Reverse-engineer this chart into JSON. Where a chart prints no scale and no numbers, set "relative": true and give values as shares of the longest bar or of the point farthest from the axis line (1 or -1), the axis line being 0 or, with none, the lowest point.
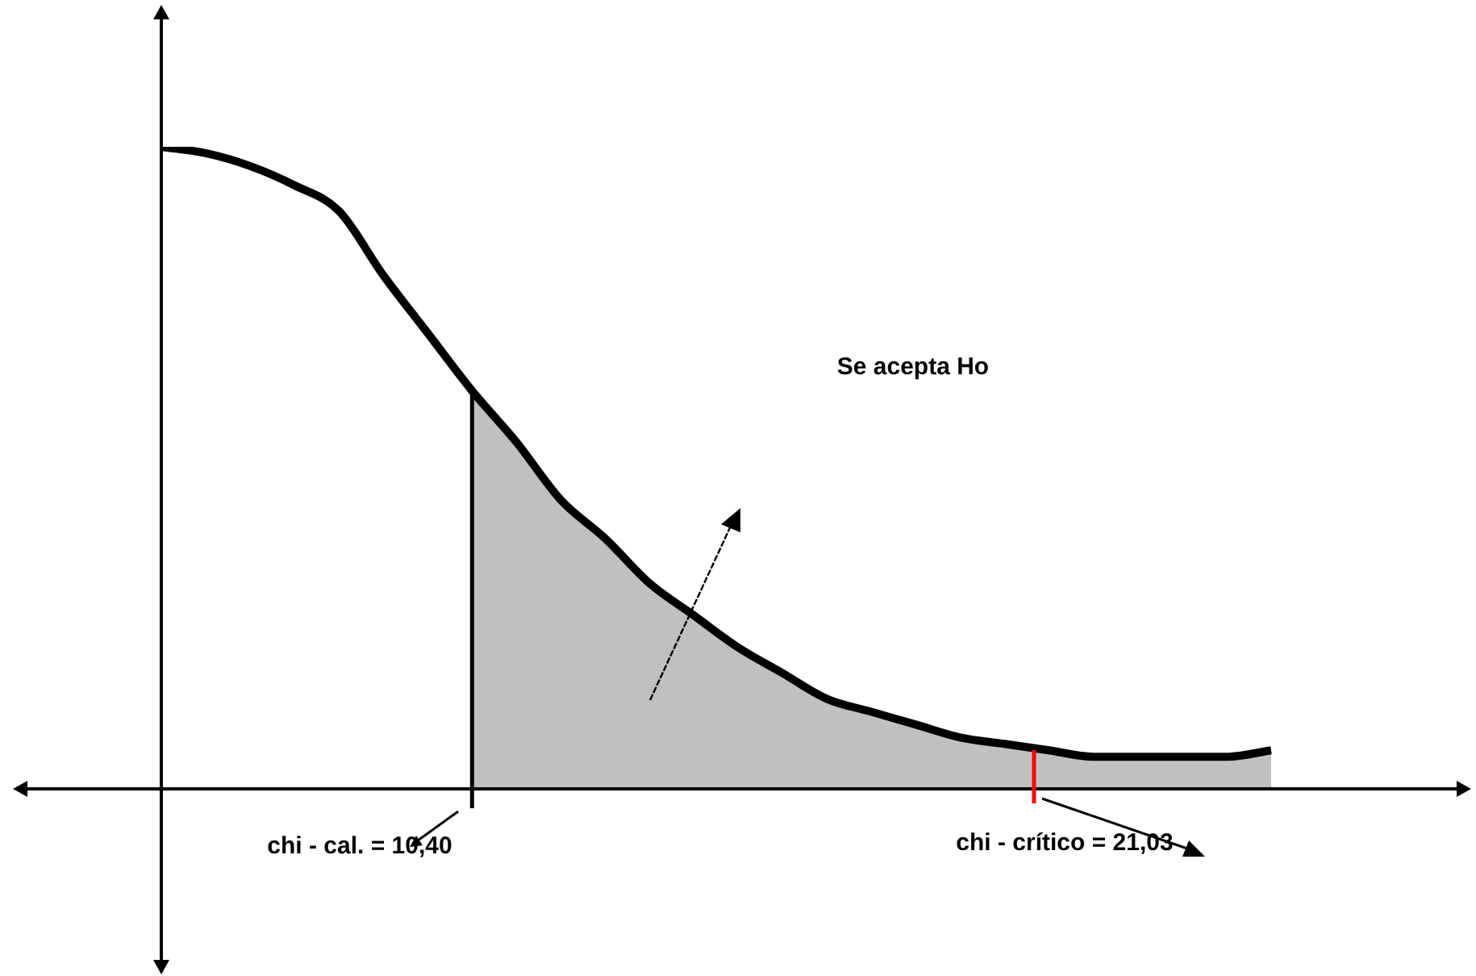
{
  "chart_data": {
    "type": "line",
    "relative": true,
    "tick_labels": false,
    "legend": false,
    "marker": "none",
    "line_style": "solid",
    "categories": [
      null,
      null,
      null,
      null,
      null,
      null,
      null,
      null,
      null,
      null,
      null,
      null,
      null,
      null,
      null,
      null,
      null,
      null,
      null,
      null,
      null,
      null,
      null,
      null,
      null,
      null
    ],
    "series": [
      {
        "color": "#000000",
        "values": [
          1,
          0.99,
          0.97,
          0.94,
          0.9,
          0.8,
          0.71,
          0.62,
          0.54,
          0.45,
          0.39,
          0.32,
          0.27,
          0.22,
          0.18,
          0.14,
          0.12,
          0.1,
          0.08,
          0.07,
          0.06,
          0.05,
          0.05,
          0.05,
          0.05,
          0.06
        ]
      },
      {
        "type": "area",
        "color": "#c0c0c0",
        "values": [
          null,
          null,
          null,
          null,
          null,
          null,
          null,
          0.62,
          0.54,
          0.45,
          0.39,
          0.32,
          0.27,
          0.22,
          0.18,
          0.14,
          0.12,
          0.1,
          0.08,
          0.07,
          0.06,
          0.05,
          0.05,
          0.05,
          0.05,
          0.06
        ]
      }
    ],
    "annotations": [
      "Se acepta Ho",
      "chi - cal. = 10,40",
      "chi - crítico = 21,03"
    ]
  }
}
